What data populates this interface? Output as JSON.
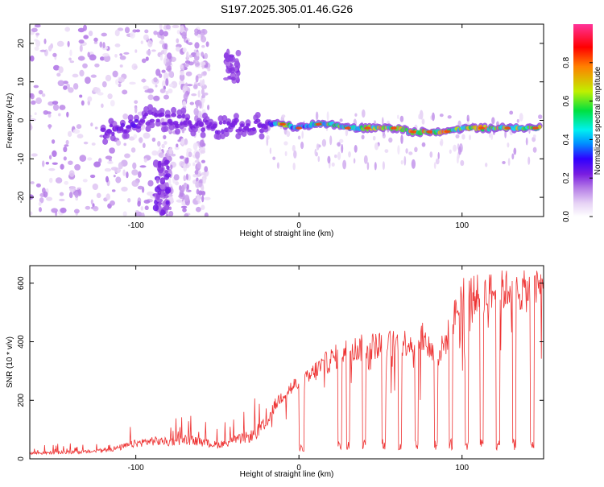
{
  "title": "S197.2025.305.01.46.G26",
  "chart_data": [
    {
      "type": "heatmap",
      "title": "S197.2025.305.01.46.G26",
      "xlabel": "Height of straight line (km)",
      "ylabel": "Frequency (Hz)",
      "xlim": [
        -165,
        150
      ],
      "ylim": [
        -25,
        25
      ],
      "xticks": [
        -100,
        0,
        100
      ],
      "yticks": [
        -20,
        -10,
        0,
        10,
        20
      ],
      "xtick_labels": [
        "-100",
        "0",
        "100"
      ],
      "ytick_labels": [
        "-20",
        "-10",
        "0",
        "10",
        "20"
      ],
      "colorbar": {
        "label": "Normalized spectral amplitude",
        "range": [
          0,
          1
        ],
        "ticks": [
          0.0,
          0.2,
          0.4,
          0.6,
          0.8
        ],
        "tick_labels": [
          "0.0",
          "0.2",
          "0.4",
          "0.6",
          "0.8"
        ],
        "colors": [
          "#ffffff",
          "#e6d2f5",
          "#b47ae6",
          "#7a1ee0",
          "#3000ff",
          "#0090ff",
          "#00f0f0",
          "#00e040",
          "#c0f000",
          "#ff8000",
          "#ff0000"
        ]
      },
      "ridge": {
        "x": [
          -120,
          -110,
          -100,
          -95,
          -90,
          -60,
          -50,
          -40,
          -30,
          -20,
          -10,
          0,
          10,
          20,
          30,
          40,
          50,
          60,
          70,
          80,
          90,
          100,
          110,
          120,
          130,
          140,
          148
        ],
        "freq": [
          -3,
          -2,
          -1,
          0,
          1,
          -1,
          -2,
          -1,
          -2,
          -1,
          -1,
          -2,
          -1,
          -1,
          -2,
          -2,
          -2,
          -2,
          -3,
          -3,
          -3,
          -2,
          -2,
          -2,
          -2,
          -2,
          -2
        ],
        "amplitude": [
          0.3,
          0.35,
          0.35,
          0.3,
          0.3,
          0.3,
          0.3,
          0.3,
          0.3,
          0.35,
          0.85,
          0.5,
          0.7,
          0.75,
          0.7,
          0.8,
          0.85,
          0.85,
          0.85,
          0.9,
          0.9,
          0.75,
          0.9,
          0.85,
          0.75,
          0.8,
          0.85
        ]
      }
    },
    {
      "type": "line",
      "xlabel": "Height of straight line (km)",
      "ylabel": "SNR (10 * v/v)",
      "xlim": [
        -165,
        150
      ],
      "ylim": [
        0,
        660
      ],
      "xticks": [
        -100,
        0,
        100
      ],
      "yticks": [
        0,
        200,
        400,
        600
      ],
      "xtick_labels": [
        "-100",
        "0",
        "100"
      ],
      "ytick_labels": [
        "0",
        "200",
        "400",
        "600"
      ],
      "series": [
        {
          "name": "SNR",
          "color": "#ee3333",
          "x": [
            -165,
            -150,
            -130,
            -120,
            -110,
            -100,
            -90,
            -80,
            -70,
            -60,
            -50,
            -40,
            -30,
            -20,
            -15,
            -10,
            -5,
            0,
            5,
            10,
            20,
            30,
            40,
            50,
            60,
            70,
            75,
            80,
            85,
            90,
            100,
            110,
            120,
            130,
            140,
            150
          ],
          "y": [
            20,
            22,
            25,
            30,
            40,
            55,
            65,
            60,
            70,
            60,
            50,
            65,
            80,
            120,
            180,
            220,
            240,
            260,
            270,
            300,
            340,
            370,
            380,
            390,
            395,
            400,
            420,
            380,
            350,
            400,
            560,
            560,
            570,
            580,
            570,
            590
          ]
        }
      ],
      "dropouts_x": [
        2,
        25,
        30,
        40,
        52,
        62,
        72,
        84,
        93,
        103,
        112,
        122,
        132,
        143
      ]
    }
  ]
}
